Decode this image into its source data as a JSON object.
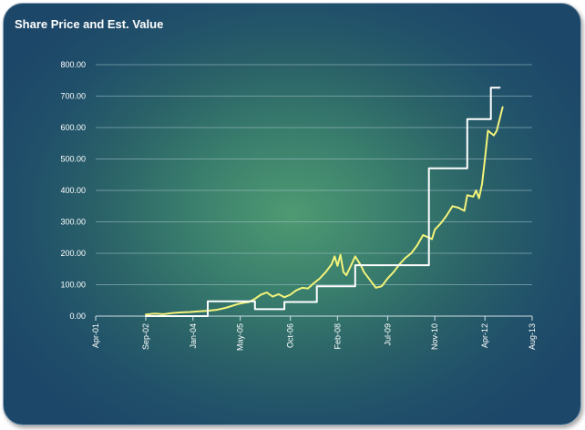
{
  "chart_data": {
    "type": "line",
    "title": "Share Price and Est. Value",
    "xlabel": "",
    "ylabel": "",
    "ylim": [
      0,
      800
    ],
    "yticks": [
      "0.00",
      "100.00",
      "200.00",
      "300.00",
      "400.00",
      "500.00",
      "600.00",
      "700.00",
      "800.00"
    ],
    "xlim": [
      "2001-04",
      "2013-08"
    ],
    "xticks": [
      {
        "label": "Apr-01",
        "date": "2001-04"
      },
      {
        "label": "Sep-02",
        "date": "2002-09"
      },
      {
        "label": "Jan-04",
        "date": "2004-01"
      },
      {
        "label": "May-05",
        "date": "2005-05"
      },
      {
        "label": "Oct-06",
        "date": "2006-10"
      },
      {
        "label": "Feb-08",
        "date": "2008-02"
      },
      {
        "label": "Jul-09",
        "date": "2009-07"
      },
      {
        "label": "Nov-10",
        "date": "2010-11"
      },
      {
        "label": "Apr-12",
        "date": "2012-04"
      },
      {
        "label": "Aug-13",
        "date": "2013-08"
      }
    ],
    "grid": true,
    "legend": "none",
    "series": [
      {
        "color": "#f3f37a",
        "points": [
          [
            "2002-09",
            5
          ],
          [
            "2002-12",
            8
          ],
          [
            "2003-03",
            6
          ],
          [
            "2003-06",
            10
          ],
          [
            "2003-09",
            12
          ],
          [
            "2003-12",
            13
          ],
          [
            "2004-03",
            15
          ],
          [
            "2004-06",
            17
          ],
          [
            "2004-09",
            20
          ],
          [
            "2004-12",
            26
          ],
          [
            "2005-02",
            32
          ],
          [
            "2005-04",
            38
          ],
          [
            "2005-06",
            42
          ],
          [
            "2005-08",
            45
          ],
          [
            "2005-10",
            55
          ],
          [
            "2005-12",
            68
          ],
          [
            "2006-02",
            75
          ],
          [
            "2006-04",
            62
          ],
          [
            "2006-06",
            70
          ],
          [
            "2006-08",
            60
          ],
          [
            "2006-10",
            68
          ],
          [
            "2006-12",
            82
          ],
          [
            "2007-02",
            90
          ],
          [
            "2007-04",
            88
          ],
          [
            "2007-06",
            105
          ],
          [
            "2007-08",
            120
          ],
          [
            "2007-10",
            140
          ],
          [
            "2007-12",
            165
          ],
          [
            "2008-01",
            190
          ],
          [
            "2008-02",
            160
          ],
          [
            "2008-03",
            195
          ],
          [
            "2008-04",
            140
          ],
          [
            "2008-05",
            130
          ],
          [
            "2008-07",
            170
          ],
          [
            "2008-08",
            190
          ],
          [
            "2008-10",
            160
          ],
          [
            "2008-11",
            140
          ],
          [
            "2009-01",
            115
          ],
          [
            "2009-03",
            90
          ],
          [
            "2009-05",
            95
          ],
          [
            "2009-07",
            120
          ],
          [
            "2009-09",
            140
          ],
          [
            "2009-11",
            165
          ],
          [
            "2010-01",
            185
          ],
          [
            "2010-03",
            200
          ],
          [
            "2010-05",
            225
          ],
          [
            "2010-07",
            258
          ],
          [
            "2010-09",
            250
          ],
          [
            "2010-10",
            245
          ],
          [
            "2010-11",
            275
          ],
          [
            "2011-01",
            295
          ],
          [
            "2011-03",
            320
          ],
          [
            "2011-05",
            350
          ],
          [
            "2011-07",
            345
          ],
          [
            "2011-09",
            335
          ],
          [
            "2011-10",
            385
          ],
          [
            "2011-12",
            380
          ],
          [
            "2012-01",
            400
          ],
          [
            "2012-02",
            375
          ],
          [
            "2012-03",
            420
          ],
          [
            "2012-04",
            500
          ],
          [
            "2012-05",
            590
          ],
          [
            "2012-07",
            575
          ],
          [
            "2012-08",
            590
          ],
          [
            "2012-10",
            665
          ]
        ]
      },
      {
        "color": "#ffffff",
        "points": [
          [
            "2002-09",
            0
          ],
          [
            "2004-06",
            0
          ],
          [
            "2004-06",
            47
          ],
          [
            "2005-10",
            47
          ],
          [
            "2005-10",
            22
          ],
          [
            "2006-08",
            22
          ],
          [
            "2006-08",
            45
          ],
          [
            "2007-07",
            45
          ],
          [
            "2007-07",
            95
          ],
          [
            "2008-08",
            95
          ],
          [
            "2008-08",
            162
          ],
          [
            "2010-09",
            162
          ],
          [
            "2010-09",
            470
          ],
          [
            "2011-10",
            470
          ],
          [
            "2011-10",
            627
          ],
          [
            "2012-06",
            627
          ],
          [
            "2012-06",
            727
          ],
          [
            "2012-09",
            727
          ]
        ]
      }
    ]
  }
}
